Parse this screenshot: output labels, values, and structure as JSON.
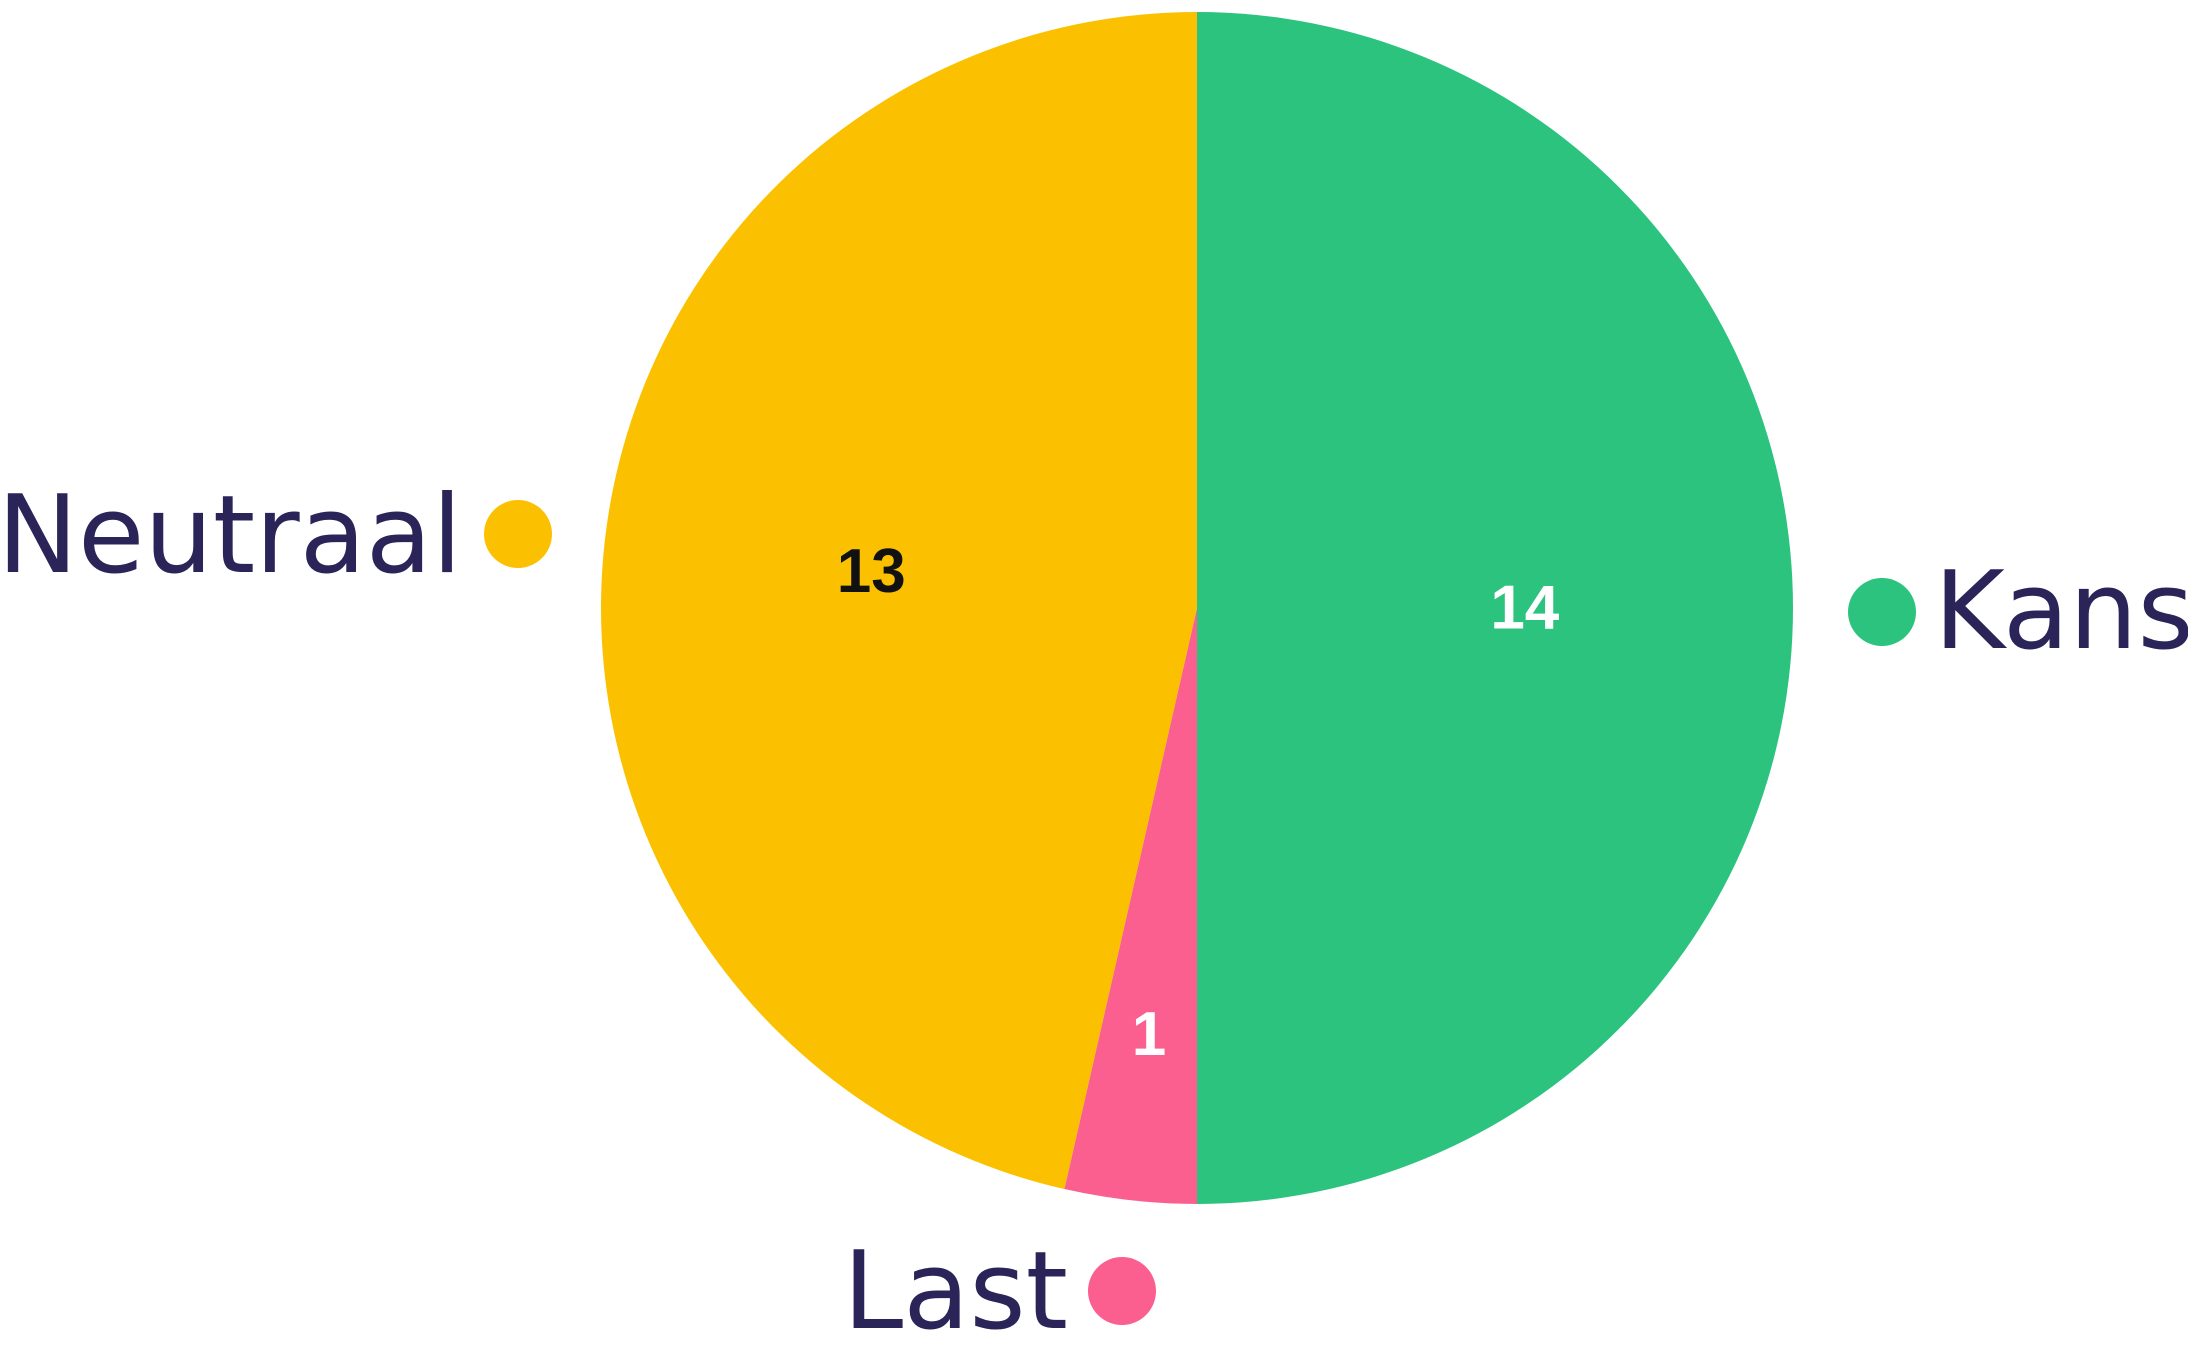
{
  "chart_data": {
    "type": "pie",
    "title": "",
    "start_angle_deg": 0,
    "direction": "clockwise",
    "legend_placement": "outside-labels",
    "legend_text_color": "#2a2459",
    "slices": [
      {
        "label": "Kans",
        "value": 14,
        "color": "#2bc37e",
        "value_text_color": "#ffffff"
      },
      {
        "label": "Last",
        "value": 1,
        "color": "#fb5f8f",
        "value_text_color": "#ffffff"
      },
      {
        "label": "Neutraal",
        "value": 13,
        "color": "#fbc100",
        "value_text_color": "#111111"
      }
    ]
  }
}
